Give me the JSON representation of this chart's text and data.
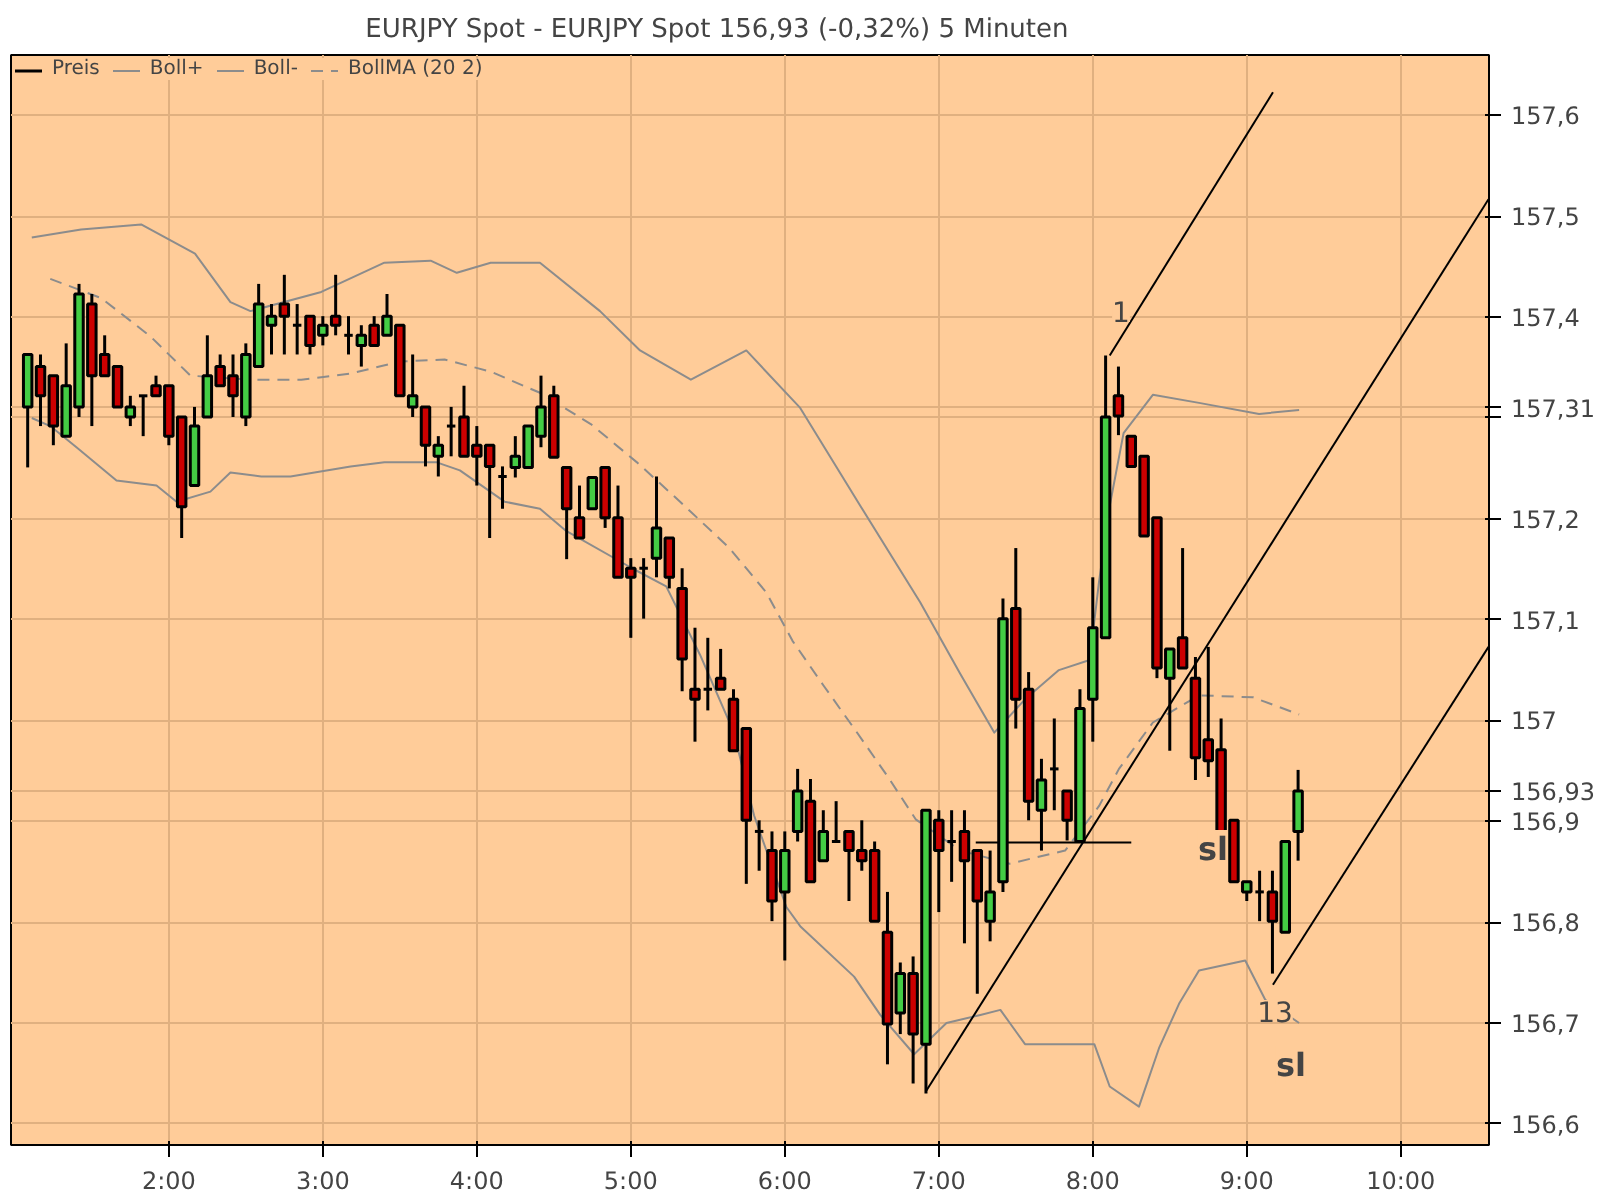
{
  "chart_data": {
    "type": "candlestick",
    "title": "EURJPY Spot - EURJPY Spot     156,93 (-0,32%)     5 Minuten",
    "xlim": [
      0.975,
      10.573
    ],
    "xticks": [
      {
        "value": 2,
        "label": "2:00"
      },
      {
        "value": 3,
        "label": "3:00"
      },
      {
        "value": 4,
        "label": "4:00"
      },
      {
        "value": 5,
        "label": "5:00"
      },
      {
        "value": 6,
        "label": "6:00"
      },
      {
        "value": 7,
        "label": "7:00"
      },
      {
        "value": 8,
        "label": "8:00"
      },
      {
        "value": 9,
        "label": "9:00"
      },
      {
        "value": 10,
        "label": "10:00"
      }
    ],
    "ylim": [
      156.579,
      157.66
    ],
    "yticks": [
      {
        "value": 156.6,
        "label": "156,6"
      },
      {
        "value": 156.7,
        "label": "156,7"
      },
      {
        "value": 156.8,
        "label": "156,8"
      },
      {
        "value": 156.9,
        "label": "156,9"
      },
      {
        "value": 156.93,
        "label": "156,93"
      },
      {
        "value": 157,
        "label": "157"
      },
      {
        "value": 157.1,
        "label": "157,1"
      },
      {
        "value": 157.2,
        "label": "157,2"
      },
      {
        "value": 157.3,
        "label": null
      },
      {
        "value": 157.31,
        "label": "157,31"
      },
      {
        "value": 157.4,
        "label": "157,4"
      },
      {
        "value": 157.5,
        "label": "157,5"
      },
      {
        "value": 157.6,
        "label": "157,6"
      }
    ],
    "grid": true,
    "legend": "top left",
    "series": [
      {
        "name": "Preis",
        "x": [
          1.0833,
          1.1667,
          1.25,
          1.3333,
          1.4167,
          1.5,
          1.5833,
          1.6667,
          1.75,
          1.8333,
          1.9167,
          2,
          2.0833,
          2.1667,
          2.25,
          2.3333,
          2.4167,
          2.5,
          2.5833,
          2.6667,
          2.75,
          2.8333,
          2.9167,
          3,
          3.0833,
          3.1667,
          3.25,
          3.3333,
          3.4167,
          3.5,
          3.5833,
          3.6667,
          3.75,
          3.8333,
          3.9167,
          4,
          4.0833,
          4.1667,
          4.25,
          4.3333,
          4.4167,
          4.5,
          4.5833,
          4.6667,
          4.75,
          4.8333,
          4.9167,
          5,
          5.0833,
          5.1667,
          5.25,
          5.3333,
          5.4167,
          5.5,
          5.5833,
          5.6667,
          5.75,
          5.8333,
          5.9167,
          6,
          6.0833,
          6.1667,
          6.25,
          6.3333,
          6.4167,
          6.5,
          6.5833,
          6.6667,
          6.75,
          6.8333,
          6.9167,
          7,
          7.0833,
          7.1667,
          7.25,
          7.3333,
          7.4167,
          7.5,
          7.5833,
          7.6667,
          7.75,
          7.8333,
          7.9167,
          8,
          8.0833,
          8.1667,
          8.25,
          8.3333,
          8.4167,
          8.5,
          8.5833,
          8.6667,
          8.75,
          8.8333,
          8.9167,
          9,
          9.0833,
          9.1667,
          9.25,
          9.3333
        ],
        "ohlc": [
          [
            157.311,
            157.363,
            157.251,
            157.363
          ],
          [
            157.351,
            157.363,
            157.292,
            157.322
          ],
          [
            157.342,
            157.342,
            157.273,
            157.292
          ],
          [
            157.282,
            157.374,
            157.282,
            157.332
          ],
          [
            157.311,
            157.433,
            157.301,
            157.423
          ],
          [
            157.413,
            157.423,
            157.292,
            157.342
          ],
          [
            157.363,
            157.382,
            157.342,
            157.342
          ],
          [
            157.351,
            157.351,
            157.311,
            157.311
          ],
          [
            157.301,
            157.322,
            157.292,
            157.311
          ],
          [
            157.322,
            157.322,
            157.282,
            157.322
          ],
          [
            157.332,
            157.342,
            157.322,
            157.322
          ],
          [
            157.332,
            157.332,
            157.273,
            157.282
          ],
          [
            157.301,
            157.301,
            157.181,
            157.212
          ],
          [
            157.233,
            157.311,
            157.233,
            157.292
          ],
          [
            157.301,
            157.382,
            157.301,
            157.342
          ],
          [
            157.351,
            157.363,
            157.332,
            157.332
          ],
          [
            157.342,
            157.363,
            157.301,
            157.322
          ],
          [
            157.301,
            157.374,
            157.292,
            157.363
          ],
          [
            157.351,
            157.433,
            157.351,
            157.413
          ],
          [
            157.392,
            157.413,
            157.363,
            157.401
          ],
          [
            157.413,
            157.442,
            157.363,
            157.401
          ],
          [
            157.392,
            157.413,
            157.363,
            157.392
          ],
          [
            157.401,
            157.401,
            157.363,
            157.372
          ],
          [
            157.382,
            157.401,
            157.372,
            157.392
          ],
          [
            157.401,
            157.442,
            157.382,
            157.392
          ],
          [
            157.382,
            157.401,
            157.363,
            157.382
          ],
          [
            157.372,
            157.392,
            157.351,
            157.382
          ],
          [
            157.392,
            157.401,
            157.372,
            157.372
          ],
          [
            157.382,
            157.423,
            157.382,
            157.401
          ],
          [
            157.392,
            157.392,
            157.322,
            157.322
          ],
          [
            157.311,
            157.363,
            157.301,
            157.322
          ],
          [
            157.311,
            157.311,
            157.252,
            157.273
          ],
          [
            157.262,
            157.282,
            157.242,
            157.273
          ],
          [
            157.292,
            157.311,
            157.262,
            157.292
          ],
          [
            157.301,
            157.332,
            157.262,
            157.262
          ],
          [
            157.273,
            157.292,
            157.233,
            157.262
          ],
          [
            157.273,
            157.273,
            157.181,
            157.252
          ],
          [
            157.242,
            157.252,
            157.21,
            157.242
          ],
          [
            157.251,
            157.282,
            157.241,
            157.262
          ],
          [
            157.251,
            157.292,
            157.251,
            157.292
          ],
          [
            157.282,
            157.342,
            157.271,
            157.311
          ],
          [
            157.322,
            157.332,
            157.261,
            157.261
          ],
          [
            157.251,
            157.251,
            157.16,
            157.21
          ],
          [
            157.201,
            157.233,
            157.181,
            157.181
          ],
          [
            157.21,
            157.241,
            157.21,
            157.241
          ],
          [
            157.251,
            157.251,
            157.191,
            157.201
          ],
          [
            157.201,
            157.233,
            157.142,
            157.142
          ],
          [
            157.151,
            157.161,
            157.082,
            157.142
          ],
          [
            157.151,
            157.161,
            157.101,
            157.151
          ],
          [
            157.161,
            157.242,
            157.142,
            157.191
          ],
          [
            157.181,
            157.181,
            157.131,
            157.142
          ],
          [
            157.131,
            157.151,
            157.029,
            157.061
          ],
          [
            157.031,
            157.092,
            156.979,
            157.021
          ],
          [
            157.031,
            157.082,
            157.01,
            157.031
          ],
          [
            157.042,
            157.071,
            157.031,
            157.031
          ],
          [
            157.021,
            157.031,
            156.97,
            156.97
          ],
          [
            156.992,
            156.992,
            156.838,
            156.901
          ],
          [
            156.89,
            156.901,
            156.851,
            156.89
          ],
          [
            156.871,
            156.89,
            156.801,
            156.821
          ],
          [
            156.83,
            156.89,
            156.762,
            156.871
          ],
          [
            156.89,
            156.952,
            156.88,
            156.93
          ],
          [
            156.92,
            156.942,
            156.84,
            156.84
          ],
          [
            156.861,
            156.911,
            156.861,
            156.89
          ],
          [
            156.88,
            156.92,
            156.88,
            156.88
          ],
          [
            156.89,
            156.89,
            156.821,
            156.871
          ],
          [
            156.871,
            156.901,
            156.851,
            156.861
          ],
          [
            156.871,
            156.88,
            156.801,
            156.801
          ],
          [
            156.79,
            156.83,
            156.659,
            156.699
          ],
          [
            156.71,
            156.76,
            156.689,
            156.749
          ],
          [
            156.749,
            156.766,
            156.64,
            156.689
          ],
          [
            156.679,
            156.911,
            156.63,
            156.911
          ],
          [
            156.901,
            156.911,
            156.81,
            156.871
          ],
          [
            156.88,
            156.911,
            156.84,
            156.88
          ],
          [
            156.89,
            156.911,
            156.779,
            156.861
          ],
          [
            156.871,
            156.871,
            156.729,
            156.821
          ],
          [
            156.801,
            156.871,
            156.781,
            156.83
          ],
          [
            156.84,
            157.121,
            156.83,
            157.101
          ],
          [
            157.111,
            157.171,
            156.992,
            157.021
          ],
          [
            157.031,
            157.048,
            156.901,
            156.92
          ],
          [
            156.911,
            156.962,
            156.871,
            156.941
          ],
          [
            156.952,
            157.002,
            156.911,
            156.952
          ],
          [
            156.93,
            156.93,
            156.881,
            156.901
          ],
          [
            156.88,
            157.031,
            156.88,
            157.012
          ],
          [
            157.021,
            157.142,
            156.979,
            157.092
          ],
          [
            157.082,
            157.362,
            157.082,
            157.301
          ],
          [
            157.322,
            157.351,
            157.283,
            157.302
          ],
          [
            157.282,
            157.282,
            157.252,
            157.252
          ],
          [
            157.262,
            157.262,
            157.183,
            157.183
          ],
          [
            157.201,
            157.201,
            157.042,
            157.052
          ],
          [
            157.042,
            157.071,
            156.97,
            157.071
          ],
          [
            157.082,
            157.171,
            157.052,
            157.052
          ],
          [
            157.042,
            157.063,
            156.941,
            156.963
          ],
          [
            156.981,
            157.073,
            156.944,
            156.96
          ],
          [
            156.971,
            157.002,
            156.89,
            156.89
          ],
          [
            156.901,
            156.901,
            156.84,
            156.84
          ],
          [
            156.83,
            156.84,
            156.821,
            156.84
          ],
          [
            156.83,
            156.851,
            156.801,
            156.83
          ],
          [
            156.83,
            156.851,
            156.749,
            156.801
          ],
          [
            156.79,
            156.88,
            156.79,
            156.88
          ],
          [
            156.89,
            156.951,
            156.861,
            156.93
          ]
        ],
        "colors": [
          "#44cc44",
          "#cc0000",
          "#cc0000",
          "#44cc44",
          "#44cc44",
          "#cc0000",
          "#cc0000",
          "#cc0000",
          "#44cc44",
          "#000000",
          "#cc0000",
          "#cc0000",
          "#cc0000",
          "#44cc44",
          "#44cc44",
          "#cc0000",
          "#cc0000",
          "#44cc44",
          "#44cc44",
          "#44cc44",
          "#cc0000",
          "#000000",
          "#cc0000",
          "#44cc44",
          "#cc0000",
          "#000000",
          "#44cc44",
          "#cc0000",
          "#44cc44",
          "#cc0000",
          "#44cc44",
          "#cc0000",
          "#44cc44",
          "#000000",
          "#cc0000",
          "#cc0000",
          "#cc0000",
          "#000000",
          "#44cc44",
          "#44cc44",
          "#44cc44",
          "#cc0000",
          "#cc0000",
          "#cc0000",
          "#44cc44",
          "#cc0000",
          "#cc0000",
          "#cc0000",
          "#000000",
          "#44cc44",
          "#cc0000",
          "#cc0000",
          "#cc0000",
          "#000000",
          "#cc0000",
          "#cc0000",
          "#cc0000",
          "#000000",
          "#cc0000",
          "#44cc44",
          "#44cc44",
          "#cc0000",
          "#44cc44",
          "#000000",
          "#cc0000",
          "#cc0000",
          "#cc0000",
          "#cc0000",
          "#44cc44",
          "#cc0000",
          "#44cc44",
          "#cc0000",
          "#000000",
          "#cc0000",
          "#cc0000",
          "#44cc44",
          "#44cc44",
          "#cc0000",
          "#cc0000",
          "#44cc44",
          "#000000",
          "#cc0000",
          "#44cc44",
          "#44cc44",
          "#44cc44",
          "#cc0000",
          "#cc0000",
          "#cc0000",
          "#cc0000",
          "#44cc44",
          "#cc0000",
          "#cc0000",
          "#cc0000",
          "#cc0000",
          "#cc0000",
          "#44cc44",
          "#000000",
          "#cc0000",
          "#44cc44",
          "#44cc44"
        ]
      },
      {
        "name": "Boll+",
        "type": "line",
        "color": "#8c8c8c",
        "x": [
          1.11,
          1.43,
          1.82,
          2.17,
          2.4,
          2.53,
          2.99,
          3.4,
          3.7,
          3.87,
          4.09,
          4.41,
          4.8,
          5.06,
          5.39,
          5.75,
          6.1,
          6.49,
          6.88,
          7.14,
          7.36,
          7.56,
          7.78,
          7.98,
          8.04,
          8.11,
          8.2,
          8.39,
          8.69,
          9.08,
          9.34
        ],
        "values": [
          157.479,
          157.487,
          157.492,
          157.463,
          157.415,
          157.406,
          157.425,
          157.454,
          157.456,
          157.444,
          157.454,
          157.454,
          157.406,
          157.367,
          157.338,
          157.367,
          157.31,
          157.213,
          157.117,
          157.046,
          156.988,
          157.021,
          157.05,
          157.06,
          157.137,
          157.213,
          157.285,
          157.323,
          157.315,
          157.304,
          157.308
        ]
      },
      {
        "name": "Boll-",
        "type": "line",
        "color": "#8c8c8c",
        "x": [
          1.11,
          1.23,
          1.4,
          1.66,
          1.92,
          2.05,
          2.27,
          2.4,
          2.6,
          2.79,
          3.18,
          3.4,
          3.74,
          3.89,
          4.18,
          4.41,
          4.58,
          5.02,
          5.23,
          5.45,
          5.67,
          5.8,
          6.01,
          6.1,
          6.45,
          6.62,
          6.84,
          7.05,
          7.27,
          7.4,
          7.56,
          8.01,
          8.11,
          8.3,
          8.43,
          8.56,
          8.69,
          8.99,
          9.12,
          9.34
        ],
        "values": [
          157.3,
          157.292,
          157.271,
          157.238,
          157.233,
          157.217,
          157.227,
          157.246,
          157.242,
          157.242,
          157.252,
          157.256,
          157.256,
          157.248,
          157.217,
          157.21,
          157.188,
          157.15,
          157.133,
          157.065,
          156.988,
          156.906,
          156.815,
          156.796,
          156.746,
          156.708,
          156.669,
          156.7,
          156.708,
          156.713,
          156.679,
          156.679,
          156.637,
          156.617,
          156.675,
          156.719,
          156.752,
          156.762,
          156.723,
          156.7
        ]
      },
      {
        "name": "BollMA (20 2)",
        "type": "line",
        "color": "#8c8c8c",
        "line_style": "dashed",
        "x": [
          1.23,
          1.56,
          1.88,
          2.14,
          2.53,
          2.86,
          3.18,
          3.5,
          3.79,
          4.09,
          4.41,
          4.74,
          5.04,
          5.32,
          5.64,
          5.88,
          6.05,
          6.25,
          6.46,
          6.67,
          6.85,
          7.14,
          7.46,
          7.82,
          8.04,
          8.17,
          8.39,
          8.69,
          9.04,
          9.34
        ],
        "values": [
          157.438,
          157.419,
          157.381,
          157.342,
          157.338,
          157.338,
          157.344,
          157.356,
          157.358,
          157.346,
          157.325,
          157.294,
          157.256,
          157.217,
          157.171,
          157.127,
          157.079,
          157.035,
          156.99,
          156.944,
          156.902,
          156.871,
          156.858,
          156.871,
          156.915,
          156.952,
          156.998,
          157.025,
          157.023,
          157.006
        ]
      },
      {
        "type": "line",
        "color": "#000000",
        "x": [
          6.92,
          10.57
        ],
        "values": [
          156.633,
          157.517
        ]
      },
      {
        "type": "line",
        "color": "#000000",
        "x": [
          8.11,
          9.17
        ],
        "values": [
          157.362,
          157.623
        ]
      },
      {
        "type": "line",
        "color": "#000000",
        "x": [
          9.17,
          10.57
        ],
        "values": [
          156.738,
          157.073
        ]
      },
      {
        "type": "line",
        "color": "#000000",
        "x": [
          7.24,
          8.25
        ],
        "values": [
          156.879,
          156.879
        ]
      }
    ],
    "annotations": [
      "1",
      "sl",
      "13",
      "sl"
    ]
  }
}
